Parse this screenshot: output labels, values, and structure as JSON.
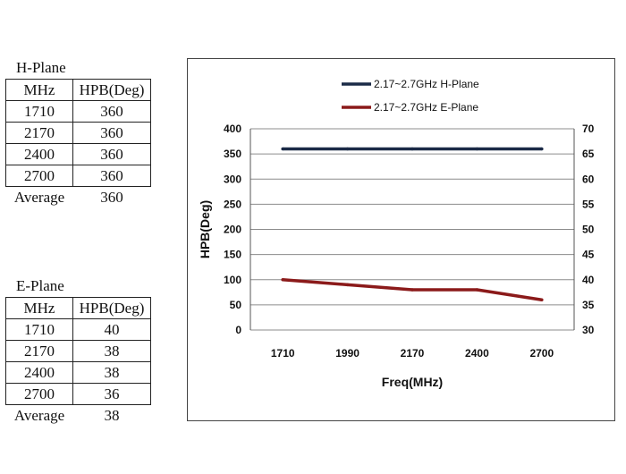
{
  "hplane_table": {
    "caption": "H-Plane",
    "headers": [
      "MHz",
      "HPB(Deg)"
    ],
    "rows": [
      [
        "1710",
        "360"
      ],
      [
        "2170",
        "360"
      ],
      [
        "2400",
        "360"
      ],
      [
        "2700",
        "360"
      ]
    ],
    "average_label": "Average",
    "average_value": "360"
  },
  "eplane_table": {
    "caption": "E-Plane",
    "headers": [
      "MHz",
      "HPB(Deg)"
    ],
    "rows": [
      [
        "1710",
        "40"
      ],
      [
        "2170",
        "38"
      ],
      [
        "2400",
        "38"
      ],
      [
        "2700",
        "36"
      ]
    ],
    "average_label": "Average",
    "average_value": "38"
  },
  "chart_data": {
    "type": "line",
    "categories": [
      "1710",
      "1990",
      "2170",
      "2400",
      "2700"
    ],
    "xlabel": "Freq(MHz)",
    "ylabel": "HPB(Deg)",
    "ylim": [
      0,
      400
    ],
    "yticks": [
      0,
      50,
      100,
      150,
      200,
      250,
      300,
      350,
      400
    ],
    "y2lim": [
      30,
      70
    ],
    "y2ticks": [
      30,
      35,
      40,
      45,
      50,
      55,
      60,
      65,
      70
    ],
    "grid": true,
    "legend": "top",
    "series": [
      {
        "name": "2.17~2.7GHz H-Plane",
        "axis": "left",
        "color": "#1b2a47",
        "values": [
          360,
          360,
          360,
          360,
          360
        ]
      },
      {
        "name": "2.17~2.7GHz E-Plane",
        "axis": "right",
        "color": "#8b1a1a",
        "values": [
          40,
          39,
          38,
          38,
          36
        ]
      }
    ]
  }
}
